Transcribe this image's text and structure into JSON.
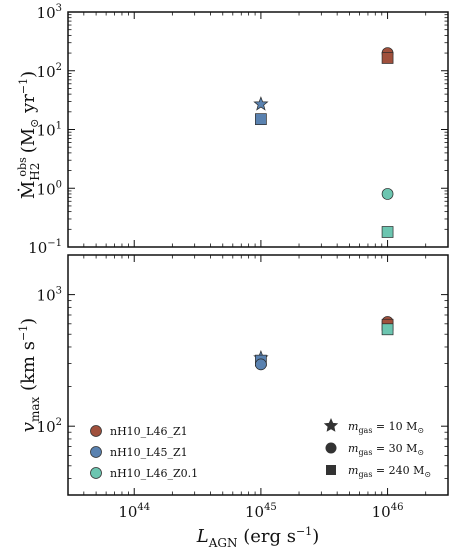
{
  "chart_data": [
    {
      "type": "scatter",
      "xlabel": "L_AGN (erg s^-1)",
      "ylabel": "Ṁ_H2^obs (M_⊙ yr^-1)",
      "xscale": "log",
      "yscale": "log",
      "xlim": [
        3e+43,
        3e+46
      ],
      "ylim": [
        0.1,
        1000
      ],
      "grid": false,
      "yticks": [
        {
          "value": 0.1,
          "base": "10",
          "exp": "−1"
        },
        {
          "value": 1,
          "base": "10",
          "exp": "0"
        },
        {
          "value": 10,
          "base": "10",
          "exp": "1"
        },
        {
          "value": 100,
          "base": "10",
          "exp": "2"
        },
        {
          "value": 1000,
          "base": "10",
          "exp": "3"
        }
      ],
      "series": [
        {
          "name": "nH10_L46_Z1",
          "color": "#a0503c",
          "points": [
            {
              "x": 1e+46,
              "y": 200,
              "marker": "circle"
            },
            {
              "x": 1e+46,
              "y": 165,
              "marker": "square"
            }
          ]
        },
        {
          "name": "nH10_L45_Z1",
          "color": "#5a82b0",
          "points": [
            {
              "x": 1e+45,
              "y": 27,
              "marker": "star"
            },
            {
              "x": 1e+45,
              "y": 15,
              "marker": "square"
            }
          ]
        },
        {
          "name": "nH10_L46_Z0.1",
          "color": "#6cc5b0",
          "points": [
            {
              "x": 1e+46,
              "y": 0.8,
              "marker": "circle"
            },
            {
              "x": 1e+46,
              "y": 0.18,
              "marker": "square"
            }
          ]
        }
      ]
    },
    {
      "type": "scatter",
      "xlabel": "L_AGN (erg s^-1)",
      "ylabel": "v_max (km s^-1)",
      "xscale": "log",
      "yscale": "log",
      "xlim": [
        3e+43,
        3e+46
      ],
      "ylim": [
        30,
        2000
      ],
      "grid": false,
      "yticks": [
        {
          "value": 100,
          "base": "10",
          "exp": "2"
        },
        {
          "value": 1000,
          "base": "10",
          "exp": "3"
        }
      ],
      "xticks": [
        {
          "value": 1e+44,
          "base": "10",
          "exp": "44"
        },
        {
          "value": 1e+45,
          "base": "10",
          "exp": "45"
        },
        {
          "value": 1e+46,
          "base": "10",
          "exp": "46"
        }
      ],
      "series": [
        {
          "name": "nH10_L46_Z1",
          "color": "#a0503c",
          "points": [
            {
              "x": 1e+46,
              "y": 620,
              "marker": "circle"
            },
            {
              "x": 1e+46,
              "y": 590,
              "marker": "square"
            }
          ]
        },
        {
          "name": "nH10_L45_Z1",
          "color": "#5a82b0",
          "points": [
            {
              "x": 1e+45,
              "y": 330,
              "marker": "star"
            },
            {
              "x": 1e+45,
              "y": 315,
              "marker": "square"
            },
            {
              "x": 1e+45,
              "y": 295,
              "marker": "circle"
            }
          ]
        },
        {
          "name": "nH10_L46_Z0.1",
          "color": "#6cc5b0",
          "points": [
            {
              "x": 1e+46,
              "y": 545,
              "marker": "square"
            }
          ]
        }
      ]
    }
  ],
  "labels": {
    "top_ylabel_main": "Ṁ",
    "top_ylabel_sub": "H2",
    "top_ylabel_sup": "obs",
    "top_ylabel_unit": "(M",
    "top_ylabel_unit_sub": "⊙",
    "top_ylabel_unit_rest": " yr",
    "top_ylabel_unit_exp": "−1",
    "top_ylabel_close": ")",
    "bottom_ylabel_main": "v",
    "bottom_ylabel_sub": "max",
    "bottom_ylabel_unit": " (km s",
    "bottom_ylabel_exp": "−1",
    "bottom_ylabel_close": ")",
    "xlabel_main": "L",
    "xlabel_sub": "AGN",
    "xlabel_unit": " (erg s",
    "xlabel_exp": "−1",
    "xlabel_close": ")"
  },
  "legend_sims": [
    {
      "label": "nH10_L46_Z1",
      "color": "#a0503c"
    },
    {
      "label": "nH10_L45_Z1",
      "color": "#5a82b0"
    },
    {
      "label": "nH10_L46_Z0.1",
      "color": "#6cc5b0"
    }
  ],
  "legend_mass": [
    {
      "marker": "star",
      "prefix": "m",
      "sub": "gas",
      "value": " = 10 M",
      "unit_sub": "⊙"
    },
    {
      "marker": "circle",
      "prefix": "m",
      "sub": "gas",
      "value": " = 30 M",
      "unit_sub": "⊙"
    },
    {
      "marker": "square",
      "prefix": "m",
      "sub": "gas",
      "value": " = 240 M",
      "unit_sub": "⊙"
    }
  ]
}
